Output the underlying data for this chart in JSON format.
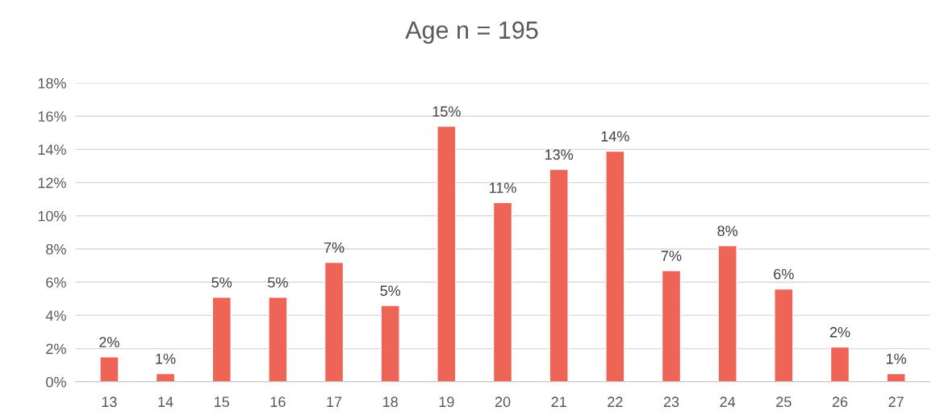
{
  "chart_data": {
    "type": "bar",
    "title": "Age n = 195",
    "categories": [
      "13",
      "14",
      "15",
      "16",
      "17",
      "18",
      "19",
      "20",
      "21",
      "22",
      "23",
      "24",
      "25",
      "26",
      "27"
    ],
    "values": [
      1.5,
      0.5,
      5.1,
      5.1,
      7.2,
      4.6,
      15.4,
      10.8,
      12.8,
      13.9,
      6.7,
      8.2,
      5.6,
      2.1,
      0.5
    ],
    "value_labels": [
      "2%",
      "1%",
      "5%",
      "5%",
      "7%",
      "5%",
      "15%",
      "11%",
      "13%",
      "14%",
      "7%",
      "8%",
      "6%",
      "2%",
      "1%"
    ],
    "color": "#ee6557",
    "ylim": [
      0,
      18
    ],
    "yticks": [
      {
        "value": 0,
        "label": "0%"
      },
      {
        "value": 2,
        "label": "2%"
      },
      {
        "value": 4,
        "label": "4%"
      },
      {
        "value": 6,
        "label": "6%"
      },
      {
        "value": 8,
        "label": "8%"
      },
      {
        "value": 10,
        "label": "10%"
      },
      {
        "value": 12,
        "label": "12%"
      },
      {
        "value": 14,
        "label": "14%"
      },
      {
        "value": 16,
        "label": "16%"
      },
      {
        "value": 18,
        "label": "18%"
      }
    ],
    "grid": "y"
  }
}
